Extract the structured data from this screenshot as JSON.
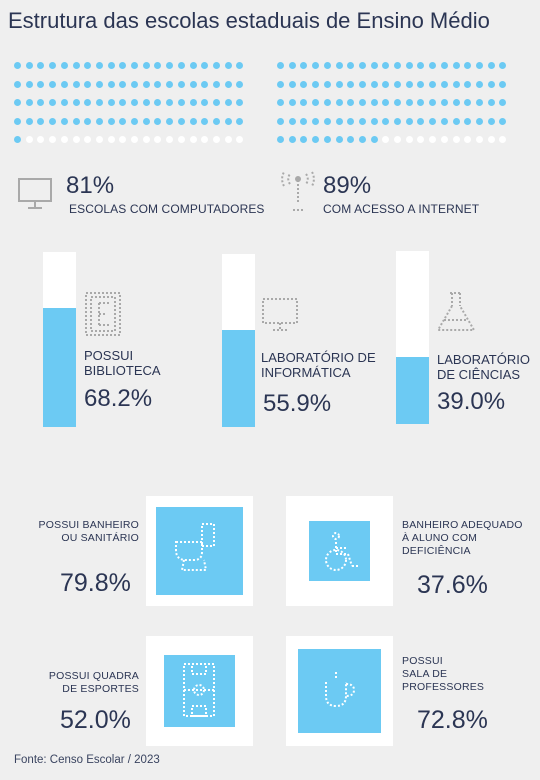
{
  "title": "Estrutura das escolas estaduais de Ensino Médio",
  "source": "Fonte: Censo Escolar / 2023",
  "colors": {
    "accent": "#6ccaf3",
    "text": "#2b3553",
    "empty": "#ffffff",
    "background": "#efefef"
  },
  "dot_stats": [
    {
      "percent": "81%",
      "label": "ESCOLAS COM COMPUTADORES",
      "icon": "monitor-icon"
    },
    {
      "percent": "89%",
      "label": "COM ACESSO A INTERNET",
      "icon": "antenna-icon"
    }
  ],
  "bar_stats": [
    {
      "label_line1": "POSSUI",
      "label_line2": "BIBLIOTECA",
      "percent": "68.2%",
      "icon": "book-icon"
    },
    {
      "label_line1": "LABORATÓRIO DE",
      "label_line2": "INFORMÁTICA",
      "percent": "55.9%",
      "icon": "monitor-icon"
    },
    {
      "label_line1": "LABORATÓRIO",
      "label_line2": "DE CIÊNCIAS",
      "percent": "39.0%",
      "icon": "flask-icon"
    }
  ],
  "tile_stats": [
    {
      "lines": [
        "POSSUI BANHEIRO",
        "OU SANITÁRIO"
      ],
      "percent": "79.8%",
      "icon": "toilet-icon"
    },
    {
      "lines": [
        "BANHEIRO ADEQUADO",
        "À ALUNO COM",
        "DEFICIÊNCIA"
      ],
      "percent": "37.6%",
      "icon": "wheelchair-icon"
    },
    {
      "lines": [
        "POSSUI QUADRA",
        "DE ESPORTES"
      ],
      "percent": "52.0%",
      "icon": "court-icon"
    },
    {
      "lines": [
        "POSSUI",
        "SALA DE",
        "PROFESSORES"
      ],
      "percent": "72.8%",
      "icon": "coffee-icon"
    }
  ],
  "chart_data": [
    {
      "type": "waffle",
      "categories": [
        "ESCOLAS COM COMPUTADORES"
      ],
      "values": [
        81
      ],
      "total": 100
    },
    {
      "type": "waffle",
      "categories": [
        "COM ACESSO A INTERNET"
      ],
      "values": [
        89
      ],
      "total": 100
    },
    {
      "type": "bar",
      "categories": [
        "POSSUI BIBLIOTECA",
        "LABORATÓRIO DE INFORMÁTICA",
        "LABORATÓRIO DE CIÊNCIAS"
      ],
      "values": [
        68.2,
        55.9,
        39.0
      ],
      "ylim": [
        0,
        100
      ]
    },
    {
      "type": "area",
      "categories": [
        "POSSUI BANHEIRO OU SANITÁRIO",
        "BANHEIRO ADEQUADO À ALUNO COM DEFICIÊNCIA",
        "POSSUI QUADRA DE ESPORTES",
        "POSSUI SALA DE PROFESSORES"
      ],
      "values": [
        79.8,
        37.6,
        52.0,
        72.8
      ],
      "ylim": [
        0,
        100
      ]
    }
  ]
}
